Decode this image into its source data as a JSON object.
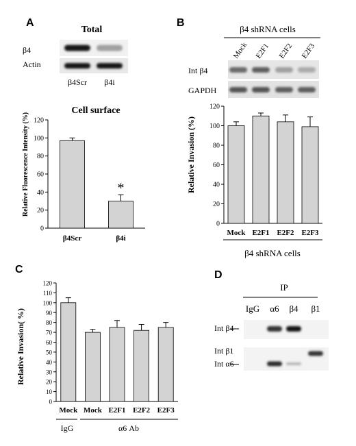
{
  "panels": {
    "A": {
      "letter": "A",
      "blot": {
        "title": "Total",
        "rows": [
          "β4",
          "Actin"
        ],
        "lanes": [
          "β4Scr",
          "β4i"
        ],
        "bands": [
          [
            1.0,
            0.35
          ],
          [
            1.0,
            1.0
          ]
        ]
      },
      "asterisk": "*",
      "chart_data": {
        "type": "bar",
        "title": "Cell surface",
        "categories": [
          "β4Scr",
          "β4i"
        ],
        "values": [
          97,
          30
        ],
        "errors": [
          3,
          7
        ],
        "ylabel": "Relative Fluorescence Intensity (%)",
        "xlabel": "",
        "ylim": [
          0,
          120
        ],
        "yticks": [
          0,
          20,
          40,
          60,
          80,
          100,
          120
        ],
        "bar_color": "#d3d3d3",
        "asterisk_color": "#808080"
      }
    },
    "B": {
      "letter": "B",
      "blot": {
        "header": "β4 shRNA cells",
        "lanes": [
          "Mock",
          "E2F1",
          "E2F2",
          "E2F3"
        ],
        "rows": [
          "Int β4",
          "GAPDH"
        ],
        "bands": [
          [
            0.6,
            0.65,
            0.35,
            0.3
          ],
          [
            0.7,
            0.7,
            0.65,
            0.65
          ]
        ]
      },
      "chart_data": {
        "type": "bar",
        "categories": [
          "Mock",
          "E2F1",
          "E2F2",
          "E2F3"
        ],
        "values": [
          100,
          110,
          104,
          99
        ],
        "errors": [
          4,
          3,
          7,
          10
        ],
        "ylabel": "Relative Invasion (%)",
        "xlabel": "",
        "ylim": [
          0,
          120
        ],
        "yticks": [
          0,
          20,
          40,
          60,
          80,
          100,
          120
        ],
        "group_label": "β4 shRNA cells",
        "bar_color": "#d3d3d3"
      }
    },
    "C": {
      "letter": "C",
      "chart_data": {
        "type": "bar",
        "categories": [
          "Mock",
          "Mock",
          "E2F1",
          "E2F2",
          "E2F3"
        ],
        "values": [
          100,
          70,
          75,
          72,
          75
        ],
        "errors": [
          5,
          3,
          7,
          6,
          5
        ],
        "ylabel": "Relative Invasion( %)",
        "xlabel": "",
        "ylim": [
          0,
          120
        ],
        "yticks": [
          0,
          10,
          20,
          30,
          40,
          50,
          60,
          70,
          80,
          90,
          100,
          110,
          120
        ],
        "groups": [
          {
            "label": "IgG",
            "indices": [
              0
            ]
          },
          {
            "label": "α6 Ab",
            "indices": [
              1,
              2,
              3,
              4
            ]
          }
        ],
        "bar_color": "#d3d3d3"
      }
    },
    "D": {
      "letter": "D",
      "blot": {
        "header": "IP",
        "lanes": [
          "IgG",
          "α6",
          "β4",
          "β1"
        ],
        "rows": [
          "Int β4",
          "Int β1",
          "Int α6"
        ],
        "bands_top": [
          0,
          0.85,
          1.0,
          0
        ],
        "bands_bottom": [
          0,
          0.9,
          0.25,
          0.85
        ]
      }
    }
  }
}
